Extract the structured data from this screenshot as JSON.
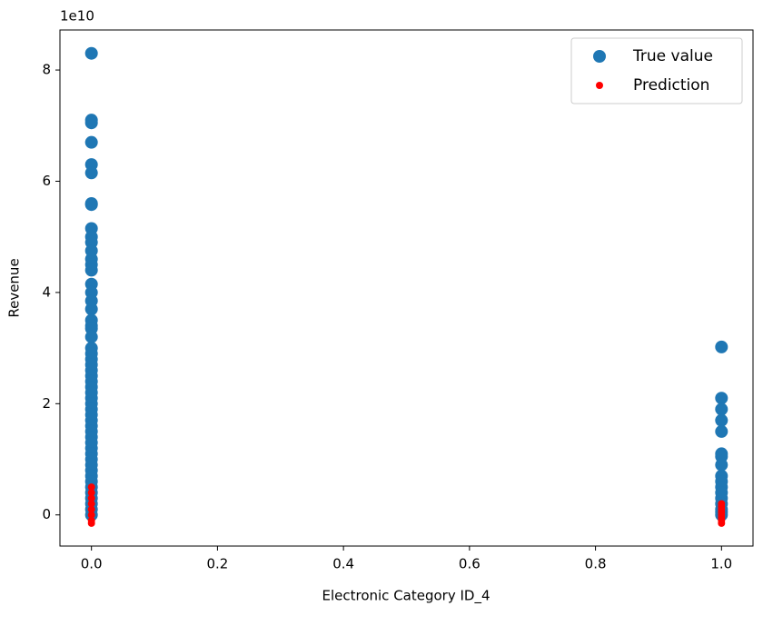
{
  "chart_data": {
    "type": "scatter",
    "x_label": "Electronic Category ID_4",
    "y_label": "Revenue",
    "y_offset_text": "1e10",
    "xlim": [
      -0.05,
      1.05
    ],
    "ylim": [
      -0.56,
      8.72
    ],
    "xticks": [
      {
        "value": 0,
        "label": "0.0"
      },
      {
        "value": 0.2,
        "label": "0.2"
      },
      {
        "value": 0.4,
        "label": "0.4"
      },
      {
        "value": 0.6,
        "label": "0.6"
      },
      {
        "value": 0.8,
        "label": "0.8"
      },
      {
        "value": 1,
        "label": "1.0"
      }
    ],
    "yticks": [
      0,
      2,
      4,
      6,
      8
    ],
    "grid": false,
    "legend": "upper right",
    "series": [
      {
        "name": "True value",
        "color": "#1f77b4",
        "size": 7,
        "x": [
          0,
          0,
          0,
          0,
          0,
          0,
          0,
          0,
          0,
          0,
          0,
          0,
          0,
          0,
          0,
          0,
          0,
          0,
          0,
          0,
          0,
          0,
          0,
          0,
          0,
          0,
          0,
          0,
          0,
          0,
          0,
          0,
          0,
          0,
          0,
          0,
          0,
          0,
          0,
          0,
          0,
          0,
          0,
          0,
          0,
          0,
          0,
          0,
          0,
          0,
          0,
          0,
          0,
          0,
          1,
          1,
          1,
          1,
          1,
          1,
          1,
          1,
          1,
          1,
          1,
          1,
          1,
          1,
          1,
          1,
          1
        ],
        "values": [
          8.3,
          7.1,
          7.05,
          6.7,
          6.3,
          6.15,
          5.6,
          5.58,
          5.15,
          5.0,
          4.9,
          4.75,
          4.6,
          4.5,
          4.4,
          4.15,
          4.0,
          3.85,
          3.7,
          3.5,
          3.4,
          3.35,
          3.2,
          3.0,
          2.9,
          2.8,
          2.7,
          2.6,
          2.5,
          2.4,
          2.3,
          2.2,
          2.1,
          2.0,
          1.9,
          1.8,
          1.7,
          1.6,
          1.5,
          1.4,
          1.3,
          1.2,
          1.1,
          1.0,
          0.9,
          0.8,
          0.7,
          0.6,
          0.5,
          0.4,
          0.3,
          0.2,
          0.1,
          0.0,
          3.02,
          2.1,
          1.9,
          1.7,
          1.5,
          1.1,
          1.05,
          0.9,
          0.7,
          0.6,
          0.5,
          0.4,
          0.3,
          0.2,
          0.1,
          0.05,
          0.0
        ]
      },
      {
        "name": "Prediction",
        "color": "#ff0000",
        "size": 4,
        "x": [
          0,
          0,
          0,
          0,
          0,
          0,
          0,
          0,
          1,
          1,
          1,
          1,
          1,
          1,
          1,
          1
        ],
        "values": [
          0.5,
          0.4,
          0.3,
          0.2,
          0.1,
          0.0,
          -0.1,
          -0.15,
          0.2,
          0.15,
          0.1,
          0.05,
          0.0,
          -0.05,
          -0.1,
          -0.15
        ]
      }
    ]
  }
}
